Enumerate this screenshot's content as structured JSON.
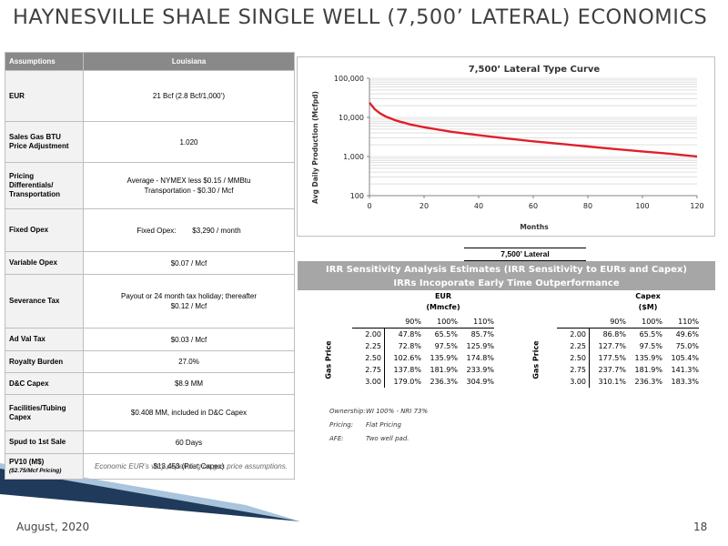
{
  "title": "HAYNESVILLE SHALE SINGLE WELL (7,500’ LATERAL) ECONOMICS",
  "assumptions": {
    "header_left": "Assumptions",
    "header_right": "Louisiana",
    "rows": [
      {
        "label": "EUR",
        "value": "21 Bcf (2.8 Bcf/1,000’)"
      },
      {
        "label": "Sales Gas BTU Price Adjustment",
        "value": "1.020"
      },
      {
        "label": "Pricing Differentials/ Transportation",
        "value": "Average - NYMEX less $0.15 / MMBtu Transportation - $0.30 / Mcf"
      },
      {
        "label": "Fixed Opex",
        "value": "Fixed Opex:        $3,290 / month"
      },
      {
        "label": "Variable Opex",
        "value": "$0.07 / Mcf"
      },
      {
        "label": "Severance Tax",
        "value": "Payout or 24 month tax holiday; thereafter $0.12 / Mcf"
      },
      {
        "label": "Ad Val Tax",
        "value": "$0.03 / Mcf"
      },
      {
        "label": "Royalty Burden",
        "value": "27.0%"
      },
      {
        "label": "D&C Capex",
        "value": "$8.9 MM"
      },
      {
        "label": "Facilities/Tubing Capex",
        "value": "$0.408 MM, included in D&C Capex"
      },
      {
        "label": "Spud to 1st Sale",
        "value": "60 Days"
      },
      {
        "label": "PV10 (M$)",
        "sublabel": "($2.75/Mcf Pricing)",
        "value": "$13,453 (Post Capex)"
      }
    ],
    "note": "Economic EUR’s vary depending on gas price assumptions."
  },
  "chart_data": {
    "type": "line",
    "title": "7,500’ Lateral Type Curve",
    "xlabel": "Months",
    "ylabel": "Avg Daily Production (Mcfpd)",
    "xlim": [
      0,
      120
    ],
    "ylim": [
      100,
      100000
    ],
    "yscale": "log",
    "xticks": [
      0,
      20,
      40,
      60,
      80,
      100,
      120
    ],
    "yticks": [
      100,
      1000,
      10000,
      100000
    ],
    "ytick_labels": [
      "100",
      "1,000",
      "10,000",
      "100,000"
    ],
    "grid": true,
    "series": [
      {
        "color": "#e0202a",
        "x": [
          0,
          2,
          4,
          6,
          10,
          15,
          20,
          30,
          40,
          50,
          60,
          70,
          80,
          90,
          100,
          110,
          120
        ],
        "y": [
          24000,
          16000,
          12500,
          10500,
          8200,
          6600,
          5600,
          4300,
          3500,
          2900,
          2450,
          2100,
          1800,
          1550,
          1350,
          1180,
          1000
        ]
      }
    ]
  },
  "lateral_label": "7,500’ Lateral",
  "irr": {
    "banner_line1": "IRR Sensitivity Analysis Estimates (IRR Sensitivity to EURs and Capex)",
    "banner_line2": "IRRs Incoporate Early Time Outperformance",
    "gas_price_label": "Gas Price",
    "eur": {
      "header1": "EUR",
      "header2": "(Mmcfe)",
      "columns": [
        "90%",
        "100%",
        "110%"
      ],
      "rows": [
        {
          "price": "2.00",
          "values": [
            "47.8%",
            "65.5%",
            "85.7%"
          ]
        },
        {
          "price": "2.25",
          "values": [
            "72.8%",
            "97.5%",
            "125.9%"
          ]
        },
        {
          "price": "2.50",
          "values": [
            "102.6%",
            "135.9%",
            "174.8%"
          ]
        },
        {
          "price": "2.75",
          "values": [
            "137.8%",
            "181.9%",
            "233.9%"
          ]
        },
        {
          "price": "3.00",
          "values": [
            "179.0%",
            "236.3%",
            "304.9%"
          ]
        }
      ]
    },
    "capex": {
      "header1": "Capex",
      "header2": "($M)",
      "columns": [
        "90%",
        "100%",
        "110%"
      ],
      "rows": [
        {
          "price": "2.00",
          "values": [
            "86.8%",
            "65.5%",
            "49.6%"
          ]
        },
        {
          "price": "2.25",
          "values": [
            "127.7%",
            "97.5%",
            "75.0%"
          ]
        },
        {
          "price": "2.50",
          "values": [
            "177.5%",
            "135.9%",
            "105.4%"
          ]
        },
        {
          "price": "2.75",
          "values": [
            "237.7%",
            "181.9%",
            "141.3%"
          ]
        },
        {
          "price": "3.00",
          "values": [
            "310.1%",
            "236.3%",
            "183.3%"
          ]
        }
      ]
    }
  },
  "notes": [
    {
      "key": "Ownership:",
      "value": "WI 100% - NRI 73%"
    },
    {
      "key": "Pricing:",
      "value": "Flat Pricing"
    },
    {
      "key": "AFE:",
      "value": "Two well pad."
    }
  ],
  "footer": {
    "date": "August, 2020",
    "page": "18"
  },
  "colors": {
    "header_bg": "#898989",
    "banner_bg": "#a6a6a6",
    "curve": "#e0202a",
    "stripe_dark": "#1f3a5a",
    "stripe_light": "#a9c4dc"
  }
}
